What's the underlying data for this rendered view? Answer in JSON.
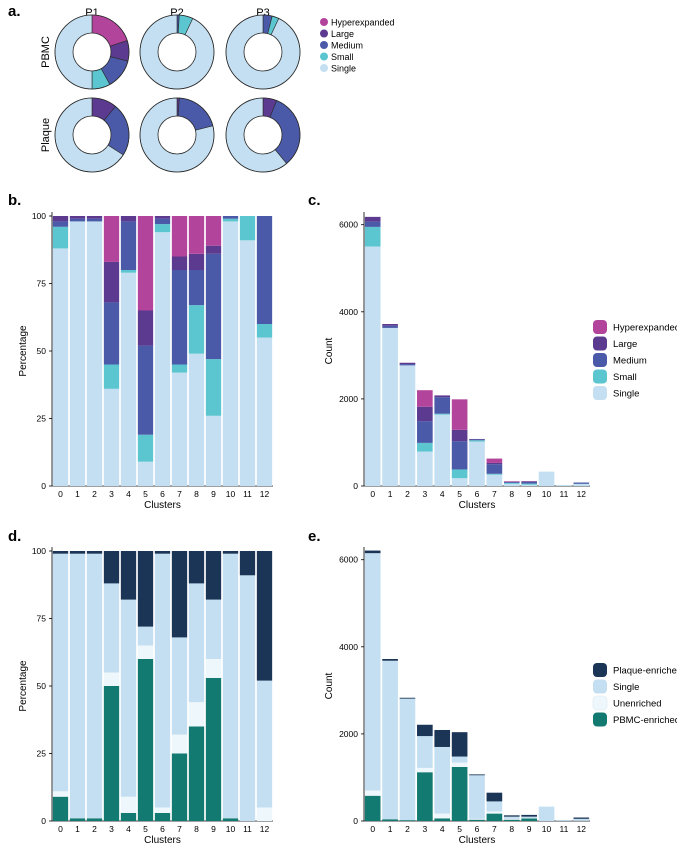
{
  "colors": {
    "Hyperexpanded": "#b3449b",
    "Large": "#5b3a90",
    "Medium": "#4a5aa8",
    "Small": "#5cc6d0",
    "Single": "#c3dff1",
    "Plaque-enriched": "#1b3556",
    "Unenriched": "#eef7fc",
    "PBMC-enriched": "#137a72"
  },
  "panel_labels": [
    "a.",
    "b.",
    "c.",
    "d.",
    "e."
  ],
  "chart_data": [
    {
      "type": "pie",
      "panel": "a",
      "donut": true,
      "columns": [
        "P1",
        "P2",
        "P3"
      ],
      "rows": [
        "PBMC",
        "Plaque"
      ],
      "categories": [
        "Hyperexpanded",
        "Large",
        "Medium",
        "Small",
        "Single"
      ],
      "legend": [
        "Hyperexpanded",
        "Large",
        "Medium",
        "Small",
        "Single"
      ],
      "pies": [
        {
          "row": "PBMC",
          "col": "P1",
          "values": [
            20,
            9,
            13,
            8,
            50
          ]
        },
        {
          "row": "PBMC",
          "col": "P2",
          "values": [
            0,
            0,
            1,
            6,
            93
          ]
        },
        {
          "row": "PBMC",
          "col": "P3",
          "values": [
            0,
            0,
            4,
            3,
            93
          ]
        },
        {
          "row": "Plaque",
          "col": "P1",
          "values": [
            0,
            11,
            23,
            0,
            66
          ]
        },
        {
          "row": "Plaque",
          "col": "P2",
          "values": [
            0,
            1,
            20,
            0,
            79
          ]
        },
        {
          "row": "Plaque",
          "col": "P3",
          "values": [
            0,
            6,
            33,
            0,
            61
          ]
        }
      ]
    },
    {
      "type": "bar",
      "panel": "b",
      "stacked": true,
      "xlabel": "Clusters",
      "ylabel": "Percentage",
      "ylim": [
        0,
        100
      ],
      "yticks": [
        0,
        25,
        50,
        75,
        100
      ],
      "categories": [
        "0",
        "1",
        "2",
        "3",
        "4",
        "5",
        "6",
        "7",
        "8",
        "9",
        "10",
        "11",
        "12"
      ],
      "series": [
        {
          "name": "Single",
          "values": [
            88,
            98,
            98,
            36,
            79,
            9,
            94,
            42,
            49,
            26,
            98,
            91,
            55
          ]
        },
        {
          "name": "Small",
          "values": [
            8,
            0,
            0,
            9,
            1,
            10,
            3,
            3,
            18,
            21,
            1,
            9,
            5
          ]
        },
        {
          "name": "Medium",
          "values": [
            2,
            1,
            1,
            23,
            18,
            33,
            2,
            35,
            13,
            39,
            1,
            0,
            40
          ]
        },
        {
          "name": "Large",
          "values": [
            2,
            1,
            1,
            15,
            2,
            13,
            1,
            5,
            6,
            3,
            0,
            0,
            0
          ]
        },
        {
          "name": "Hyperexpanded",
          "values": [
            0,
            0,
            0,
            17,
            0,
            35,
            0,
            15,
            14,
            11,
            0,
            0,
            0
          ]
        }
      ]
    },
    {
      "type": "bar",
      "panel": "c",
      "stacked": true,
      "xlabel": "Clusters",
      "ylabel": "Count",
      "ylim": [
        0,
        6200
      ],
      "yticks": [
        0,
        2000,
        4000,
        6000
      ],
      "categories": [
        "0",
        "1",
        "2",
        "3",
        "4",
        "5",
        "6",
        "7",
        "8",
        "9",
        "10",
        "11",
        "12"
      ],
      "legend": [
        "Hyperexpanded",
        "Large",
        "Medium",
        "Small",
        "Single"
      ],
      "series": [
        {
          "name": "Single",
          "values": [
            5500,
            3630,
            2770,
            790,
            1640,
            180,
            1020,
            260,
            50,
            30,
            330,
            20,
            45
          ]
        },
        {
          "name": "Small",
          "values": [
            450,
            0,
            0,
            200,
            20,
            200,
            30,
            20,
            20,
            25,
            0,
            2,
            5
          ]
        },
        {
          "name": "Medium",
          "values": [
            120,
            50,
            30,
            500,
            380,
            650,
            20,
            220,
            20,
            45,
            0,
            0,
            30
          ]
        },
        {
          "name": "Large",
          "values": [
            110,
            40,
            30,
            330,
            40,
            260,
            10,
            30,
            5,
            5,
            0,
            0,
            0
          ]
        },
        {
          "name": "Hyperexpanded",
          "values": [
            0,
            0,
            0,
            380,
            0,
            700,
            0,
            100,
            15,
            10,
            0,
            0,
            0
          ]
        }
      ]
    },
    {
      "type": "bar",
      "panel": "d",
      "stacked": true,
      "xlabel": "Clusters",
      "ylabel": "Percentage",
      "ylim": [
        0,
        100
      ],
      "yticks": [
        0,
        25,
        50,
        75,
        100
      ],
      "categories": [
        "0",
        "1",
        "2",
        "3",
        "4",
        "5",
        "6",
        "7",
        "8",
        "9",
        "10",
        "11",
        "12"
      ],
      "series": [
        {
          "name": "PBMC-enriched",
          "values": [
            9,
            1,
            1,
            50,
            3,
            60,
            3,
            25,
            35,
            53,
            1,
            0,
            0
          ]
        },
        {
          "name": "Unenriched",
          "values": [
            2,
            0,
            0,
            5,
            6,
            5,
            2,
            7,
            9,
            7,
            0,
            0,
            5
          ]
        },
        {
          "name": "Single",
          "values": [
            88,
            98,
            98,
            33,
            73,
            7,
            94,
            36,
            44,
            22,
            98,
            91,
            47
          ]
        },
        {
          "name": "Plaque-enriched",
          "values": [
            1,
            1,
            1,
            12,
            18,
            28,
            1,
            32,
            12,
            18,
            1,
            9,
            48
          ]
        }
      ]
    },
    {
      "type": "bar",
      "panel": "e",
      "stacked": true,
      "xlabel": "Clusters",
      "ylabel": "Count",
      "ylim": [
        0,
        6200
      ],
      "yticks": [
        0,
        2000,
        4000,
        6000
      ],
      "categories": [
        "0",
        "1",
        "2",
        "3",
        "4",
        "5",
        "6",
        "7",
        "8",
        "9",
        "10",
        "11",
        "12"
      ],
      "legend": [
        "Plaque-enriched",
        "Single",
        "Unenriched",
        "PBMC-enriched"
      ],
      "series": [
        {
          "name": "PBMC-enriched",
          "values": [
            580,
            40,
            20,
            1120,
            60,
            1240,
            30,
            170,
            30,
            60,
            0,
            0,
            0
          ]
        },
        {
          "name": "Unenriched",
          "values": [
            120,
            0,
            0,
            100,
            110,
            100,
            20,
            50,
            20,
            10,
            0,
            0,
            5
          ]
        },
        {
          "name": "Single",
          "values": [
            5450,
            3640,
            2790,
            730,
            1530,
            140,
            1000,
            230,
            50,
            30,
            330,
            20,
            45
          ]
        },
        {
          "name": "Plaque-enriched",
          "values": [
            60,
            40,
            20,
            260,
            390,
            560,
            20,
            200,
            30,
            40,
            0,
            2,
            30
          ]
        }
      ]
    }
  ]
}
